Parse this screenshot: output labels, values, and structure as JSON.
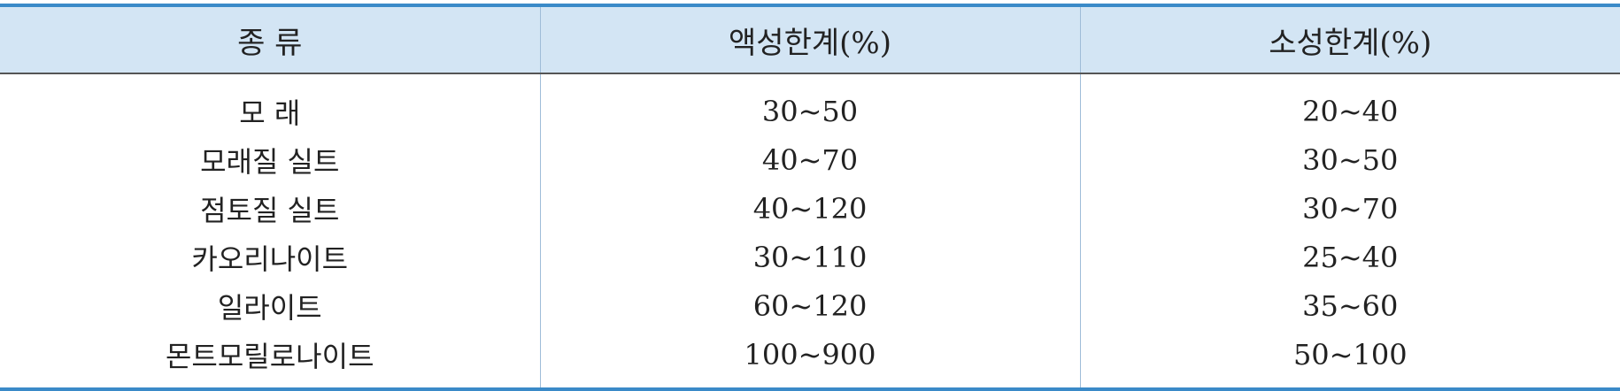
{
  "table": {
    "headers": [
      "종 류",
      "액성한계(%)",
      "소성한계(%)"
    ],
    "rows": [
      [
        "모 래",
        "30~50",
        "20~40"
      ],
      [
        "모래질 실트",
        "40~70",
        "30~50"
      ],
      [
        "점토질 실트",
        "40~120",
        "30~70"
      ],
      [
        "카오리나이트",
        "30~110",
        "25~40"
      ],
      [
        "일라이트",
        "60~120",
        "35~60"
      ],
      [
        "몬트모릴로나이트",
        "100~900",
        "50~100"
      ]
    ]
  },
  "colors": {
    "header_background": "#d3e5f4",
    "rule_blue": "#3a8ac8"
  }
}
